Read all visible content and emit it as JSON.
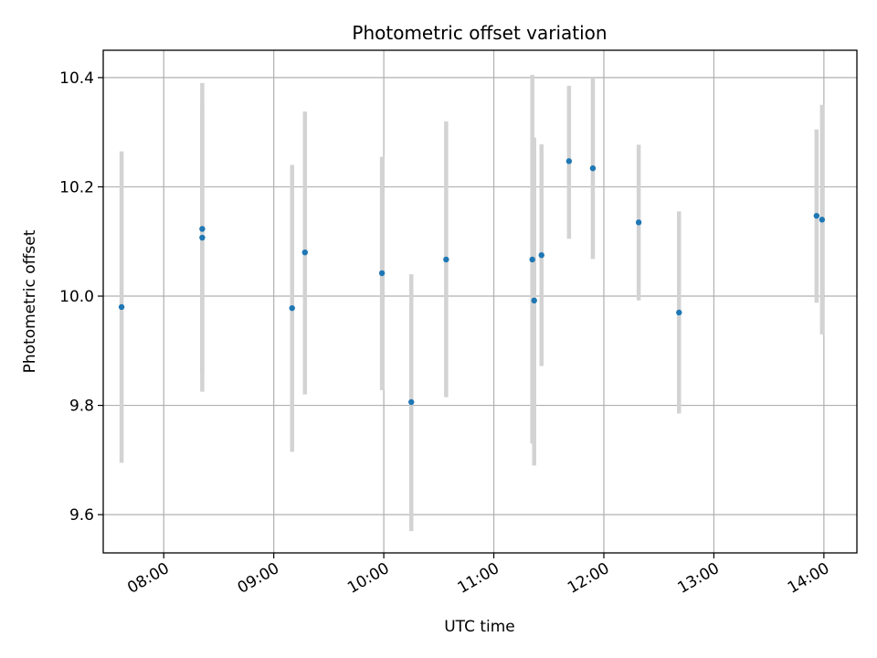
{
  "chart_data": {
    "type": "scatter",
    "title": "Photometric offset variation",
    "xlabel": "UTC time",
    "ylabel": "Photometric offset",
    "xlim": [
      "07:27",
      "14:18"
    ],
    "ylim": [
      9.53,
      10.45
    ],
    "x_ticks": [
      "08:00",
      "09:00",
      "10:00",
      "11:00",
      "12:00",
      "13:00",
      "14:00"
    ],
    "y_ticks": [
      9.6,
      9.8,
      10.0,
      10.2,
      10.4
    ],
    "grid": true,
    "points": [
      {
        "x": "07:37",
        "y": 9.98,
        "err_low": 9.695,
        "err_high": 10.265
      },
      {
        "x": "08:21",
        "y": 10.123,
        "err_low": 9.825,
        "err_high": 10.39
      },
      {
        "x": "08:21",
        "y": 10.107,
        "err_low": 9.86,
        "err_high": 10.35
      },
      {
        "x": "09:10",
        "y": 9.978,
        "err_low": 9.715,
        "err_high": 10.24
      },
      {
        "x": "09:17",
        "y": 10.08,
        "err_low": 9.82,
        "err_high": 10.338
      },
      {
        "x": "09:59",
        "y": 10.042,
        "err_low": 9.828,
        "err_high": 10.255
      },
      {
        "x": "10:15",
        "y": 9.806,
        "err_low": 9.57,
        "err_high": 10.04
      },
      {
        "x": "10:34",
        "y": 10.067,
        "err_low": 9.815,
        "err_high": 10.32
      },
      {
        "x": "11:21",
        "y": 10.067,
        "err_low": 9.73,
        "err_high": 10.405
      },
      {
        "x": "11:22",
        "y": 9.992,
        "err_low": 9.69,
        "err_high": 10.29
      },
      {
        "x": "11:26",
        "y": 10.075,
        "err_low": 9.872,
        "err_high": 10.278
      },
      {
        "x": "11:41",
        "y": 10.247,
        "err_low": 10.105,
        "err_high": 10.385
      },
      {
        "x": "11:54",
        "y": 10.234,
        "err_low": 10.068,
        "err_high": 10.4
      },
      {
        "x": "12:19",
        "y": 10.135,
        "err_low": 9.992,
        "err_high": 10.277
      },
      {
        "x": "12:41",
        "y": 9.97,
        "err_low": 9.785,
        "err_high": 10.155
      },
      {
        "x": "13:56",
        "y": 10.147,
        "err_low": 9.988,
        "err_high": 10.305
      },
      {
        "x": "13:59",
        "y": 10.14,
        "err_low": 9.93,
        "err_high": 10.35
      }
    ],
    "colors": {
      "point": "#1f77b4",
      "errorbar": "#d3d3d3",
      "grid": "#b0b0b0"
    }
  }
}
